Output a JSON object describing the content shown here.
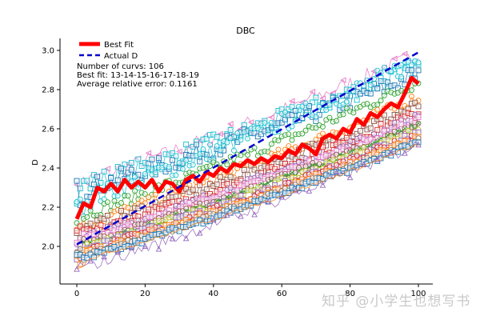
{
  "chart_data": {
    "type": "line",
    "title": "DBC",
    "xlabel": "",
    "ylabel": "D",
    "xlim": [
      -5,
      105
    ],
    "ylim": [
      1.82,
      3.06
    ],
    "xticks": [
      0,
      20,
      40,
      60,
      80,
      100
    ],
    "yticks": [
      2.0,
      2.2,
      2.4,
      2.6,
      2.8,
      3.0
    ],
    "grid": false,
    "legend_position": "upper left",
    "legend": [
      "Best Fit",
      "Actual D"
    ],
    "annotations": [
      "Number of curvs: 106",
      "Best fit: 13-14-15-16-17-18-19",
      "Average relative error: 0.1161"
    ],
    "series": [
      {
        "name": "Best Fit",
        "color": "#ff0000",
        "style": "solid-thick",
        "x": [
          0,
          2,
          4,
          6,
          8,
          10,
          12,
          14,
          16,
          18,
          20,
          22,
          24,
          26,
          28,
          30,
          32,
          34,
          36,
          38,
          40,
          42,
          44,
          46,
          48,
          50,
          52,
          54,
          56,
          58,
          60,
          62,
          64,
          66,
          68,
          70,
          72,
          74,
          76,
          78,
          80,
          82,
          84,
          86,
          88,
          90,
          92,
          94,
          96,
          98,
          100
        ],
        "values": [
          2.14,
          2.22,
          2.2,
          2.3,
          2.28,
          2.32,
          2.28,
          2.34,
          2.3,
          2.33,
          2.3,
          2.34,
          2.28,
          2.33,
          2.32,
          2.28,
          2.34,
          2.36,
          2.33,
          2.38,
          2.36,
          2.4,
          2.38,
          2.42,
          2.41,
          2.44,
          2.42,
          2.45,
          2.43,
          2.46,
          2.45,
          2.49,
          2.47,
          2.52,
          2.5,
          2.47,
          2.55,
          2.57,
          2.55,
          2.6,
          2.58,
          2.65,
          2.62,
          2.68,
          2.66,
          2.7,
          2.73,
          2.71,
          2.78,
          2.86,
          2.83
        ]
      },
      {
        "name": "Actual D",
        "color": "#0000cc",
        "style": "dashed",
        "x": [
          0,
          100
        ],
        "values": [
          2.01,
          2.99
        ]
      }
    ],
    "scatter_curves": [
      {
        "marker": "triangle-left",
        "color": "#e377c2",
        "start": 2.32,
        "end": 2.98,
        "noise": 0.04,
        "offset": 0.06
      },
      {
        "marker": "square",
        "color": "#17becf",
        "start": 2.3,
        "end": 2.92,
        "noise": 0.05,
        "offset": 0.0
      },
      {
        "marker": "square",
        "color": "#1f77b4",
        "start": 2.28,
        "end": 2.88,
        "noise": 0.05,
        "offset": -0.02
      },
      {
        "marker": "circle",
        "color": "#17becf",
        "start": 2.22,
        "end": 2.95,
        "noise": 0.05,
        "offset": -0.04
      },
      {
        "marker": "circle",
        "color": "#2ca02c",
        "start": 2.15,
        "end": 2.84,
        "noise": 0.03,
        "offset": 0.0
      },
      {
        "marker": "circle",
        "color": "#ff7f0e",
        "start": 2.1,
        "end": 2.76,
        "noise": 0.03,
        "offset": 0.0
      },
      {
        "marker": "square",
        "color": "#8c564b",
        "start": 2.08,
        "end": 2.72,
        "noise": 0.03,
        "offset": 0.0
      },
      {
        "marker": "square",
        "color": "#d62728",
        "start": 2.05,
        "end": 2.68,
        "noise": 0.025,
        "offset": 0.0
      },
      {
        "marker": "circle",
        "color": "#9467bd",
        "start": 2.03,
        "end": 2.66,
        "noise": 0.025,
        "offset": 0.0
      },
      {
        "marker": "square",
        "color": "#e377c2",
        "start": 2.02,
        "end": 2.64,
        "noise": 0.02,
        "offset": 0.0
      },
      {
        "marker": "circle",
        "color": "#8c564b",
        "start": 2.0,
        "end": 2.62,
        "noise": 0.02,
        "offset": 0.0
      },
      {
        "marker": "x",
        "color": "#2ca02c",
        "start": 1.99,
        "end": 2.62,
        "noise": 0.015,
        "offset": 0.0
      },
      {
        "marker": "circle",
        "color": "#bcbd22",
        "start": 1.98,
        "end": 2.6,
        "noise": 0.02,
        "offset": 0.0
      },
      {
        "marker": "square",
        "color": "#9467bd",
        "start": 1.97,
        "end": 2.58,
        "noise": 0.02,
        "offset": 0.0
      },
      {
        "marker": "circle",
        "color": "#d62728",
        "start": 1.96,
        "end": 2.57,
        "noise": 0.02,
        "offset": 0.0
      },
      {
        "marker": "square",
        "color": "#ff7f0e",
        "start": 1.95,
        "end": 2.55,
        "noise": 0.02,
        "offset": 0.0
      },
      {
        "marker": "circle",
        "color": "#7f7f7f",
        "start": 1.94,
        "end": 2.54,
        "noise": 0.015,
        "offset": 0.0
      },
      {
        "marker": "square",
        "color": "#1f77b4",
        "start": 1.93,
        "end": 2.53,
        "noise": 0.015,
        "offset": 0.0
      },
      {
        "marker": "triangle-up",
        "color": "#9467bd",
        "start": 1.88,
        "end": 2.52,
        "noise": 0.03,
        "offset": -0.02
      },
      {
        "marker": "line",
        "color": "#ff7f0e",
        "start": 1.92,
        "end": 2.52,
        "noise": 0.01,
        "offset": 0.0
      }
    ]
  },
  "watermark": "知乎 @小学生也想写书"
}
